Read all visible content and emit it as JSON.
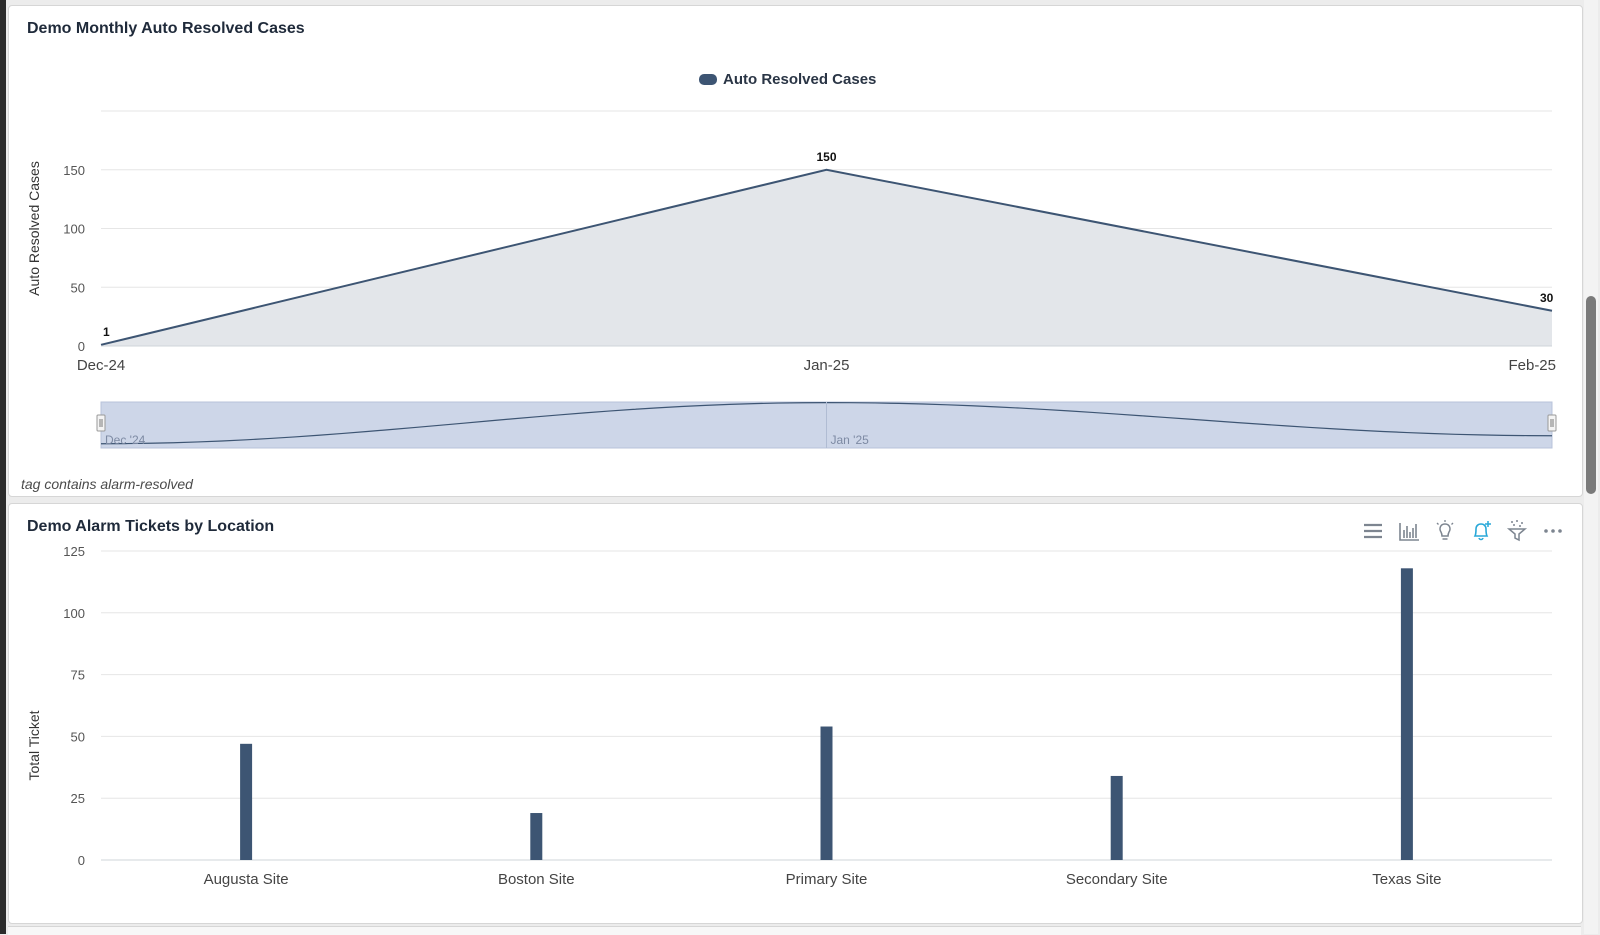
{
  "panel1": {
    "title": "Demo Monthly Auto Resolved Cases",
    "footnote": "tag contains alarm-resolved"
  },
  "panel2": {
    "title": "Demo Alarm Tickets by Location",
    "toolbar": [
      {
        "icon": "menu-icon",
        "color": "#7d8590"
      },
      {
        "icon": "bar-chart-icon",
        "color": "#7d8590"
      },
      {
        "icon": "lightbulb-icon",
        "color": "#7d8590"
      },
      {
        "icon": "bell-plus-icon",
        "color": "#29a8d8"
      },
      {
        "icon": "filter-sparkle-icon",
        "color": "#7d8590"
      },
      {
        "icon": "more-icon",
        "color": "#7d8590"
      }
    ]
  },
  "chart_data": [
    {
      "type": "area",
      "legend": [
        "Auto Resolved Cases"
      ],
      "legend_position": "top-center",
      "ylabel": "Auto Resolved Cases",
      "xlabel": "",
      "categories": [
        "Dec-24",
        "Jan-25",
        "Feb-25"
      ],
      "series": [
        {
          "name": "Auto Resolved Cases",
          "values": [
            1,
            150,
            30
          ]
        }
      ],
      "data_labels": [
        "1",
        "150",
        "30"
      ],
      "ylim": [
        0,
        200
      ],
      "yticks": [
        0,
        50,
        100,
        150
      ],
      "grid": true,
      "color": "#3d5573",
      "fill": "#e3e6ea",
      "navigator": {
        "labels": [
          "Dec '24",
          "Jan '25"
        ]
      }
    },
    {
      "type": "bar",
      "ylabel": "Total Ticket",
      "xlabel": "",
      "categories": [
        "Augusta Site",
        "Boston Site",
        "Primary Site",
        "Secondary Site",
        "Texas Site"
      ],
      "values": [
        47,
        19,
        54,
        34,
        118
      ],
      "ylim": [
        0,
        125
      ],
      "yticks": [
        0,
        25,
        50,
        75,
        100,
        125
      ],
      "grid": true,
      "color": "#3d5573"
    }
  ]
}
